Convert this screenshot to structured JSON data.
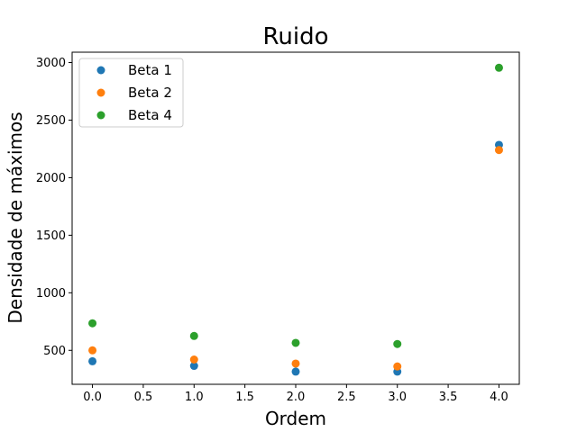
{
  "chart_data": {
    "type": "scatter",
    "title": "Ruido",
    "xlabel": "Ordem",
    "ylabel": "Densidade de máximos",
    "xlim": [
      -0.2,
      4.2
    ],
    "ylim": [
      205,
      3090
    ],
    "xticks": [
      0.0,
      0.5,
      1.0,
      1.5,
      2.0,
      2.5,
      3.0,
      3.5,
      4.0
    ],
    "xtick_labels": [
      "0.0",
      "0.5",
      "1.0",
      "1.5",
      "2.0",
      "2.5",
      "3.0",
      "3.5",
      "4.0"
    ],
    "yticks": [
      500,
      1000,
      1500,
      2000,
      2500,
      3000
    ],
    "ytick_labels": [
      "500",
      "1000",
      "1500",
      "2000",
      "2500",
      "3000"
    ],
    "grid": false,
    "legend_position": "top-left",
    "series": [
      {
        "name": "Beta 1",
        "color": "#1f77b4",
        "x": [
          0,
          1,
          2,
          3,
          4
        ],
        "y": [
          405,
          365,
          315,
          315,
          2285
        ]
      },
      {
        "name": "Beta 2",
        "color": "#ff7f0e",
        "x": [
          0,
          1,
          2,
          3,
          4
        ],
        "y": [
          500,
          420,
          385,
          360,
          2240
        ]
      },
      {
        "name": "Beta 4",
        "color": "#2ca02c",
        "x": [
          0,
          1,
          2,
          3,
          4
        ],
        "y": [
          735,
          625,
          565,
          555,
          2955
        ]
      }
    ]
  }
}
